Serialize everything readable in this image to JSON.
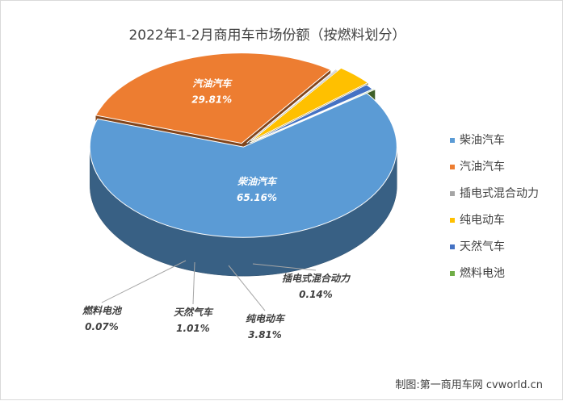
{
  "chart_data": {
    "type": "pie",
    "title": "2022年1-2月商用车市场份额（按燃料划分）",
    "slices": [
      {
        "name": "柴油汽车",
        "value": 65.16,
        "label": "65.16%",
        "color": "#5b9bd5"
      },
      {
        "name": "汽油汽车",
        "value": 29.81,
        "label": "29.81%",
        "color": "#ed7d31"
      },
      {
        "name": "插电式混合动力",
        "value": 0.14,
        "label": "0.14%",
        "color": "#a5a5a5"
      },
      {
        "name": "纯电动车",
        "value": 3.81,
        "label": "3.81%",
        "color": "#ffc000"
      },
      {
        "name": "天然气车",
        "value": 1.01,
        "label": "1.01%",
        "color": "#4472c4"
      },
      {
        "name": "燃料电池",
        "value": 0.07,
        "label": "0.07%",
        "color": "#70ad47"
      }
    ],
    "legend_position": "right",
    "style": "3d-exploded"
  },
  "credit": "制图:第一商用车网 cvworld.cn"
}
